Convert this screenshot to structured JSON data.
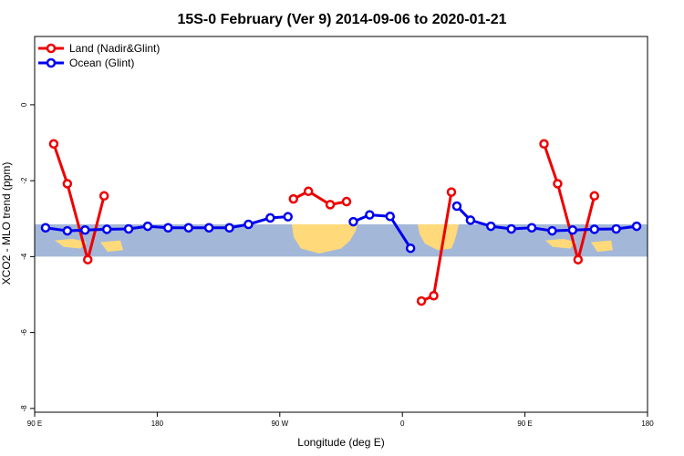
{
  "chart_data": {
    "type": "line",
    "title": "15S-0 February (Ver 9)   2014-09-06 to 2020-01-21",
    "xlabel": "Longitude (deg E)",
    "ylabel": "XCO2 - MLO trend (ppm)",
    "xlim": [
      90,
      540
    ],
    "ylim": [
      -8.1,
      1.8
    ],
    "xticks": [
      90,
      180,
      270,
      360,
      450,
      540
    ],
    "xtick_labels": [
      "90 E",
      "180",
      "90 W",
      "0",
      "90 E",
      "180"
    ],
    "yticks": [
      -8,
      -6,
      -4,
      -2,
      0
    ],
    "ytick_labels": [
      "-8",
      "-6",
      "-4",
      "-2",
      "0"
    ],
    "grid": false,
    "legend_position": "top-left",
    "background_band": {
      "y_from": -4.0,
      "y_to": -3.15,
      "description": "world map strip"
    },
    "series": [
      {
        "name": "Land (Nadir&Glint)",
        "color": "#ee0000",
        "segments": [
          [
            [
              104.0,
              -1.03
            ],
            [
              114.0,
              -2.08
            ],
            [
              129.0,
              -4.08
            ],
            [
              141.0,
              -2.4
            ]
          ],
          [
            [
              280.0,
              -2.48
            ],
            [
              291.0,
              -2.28
            ],
            [
              307.0,
              -2.63
            ],
            [
              319.0,
              -2.55
            ]
          ],
          [
            [
              374.0,
              -5.17
            ],
            [
              383.0,
              -5.03
            ],
            [
              396.0,
              -2.3
            ]
          ],
          [
            [
              464.0,
              -1.03
            ],
            [
              474.0,
              -2.08
            ],
            [
              489.0,
              -4.08
            ],
            [
              501.0,
              -2.4
            ]
          ]
        ]
      },
      {
        "name": "Ocean (Glint)",
        "color": "#0000ee",
        "segments": [
          [
            [
              98.0,
              -3.24
            ],
            [
              114.0,
              -3.32
            ],
            [
              127.0,
              -3.3
            ],
            [
              143.0,
              -3.28
            ],
            [
              159.0,
              -3.27
            ],
            [
              173.0,
              -3.2
            ],
            [
              188.0,
              -3.24
            ],
            [
              203.0,
              -3.24
            ],
            [
              218.0,
              -3.24
            ],
            [
              233.0,
              -3.24
            ],
            [
              247.0,
              -3.15
            ],
            [
              263.0,
              -2.98
            ],
            [
              276.0,
              -2.95
            ]
          ],
          [
            [
              324.0,
              -3.08
            ],
            [
              336.0,
              -2.9
            ],
            [
              351.0,
              -2.94
            ],
            [
              366.0,
              -3.78
            ]
          ],
          [
            [
              400.0,
              -2.67
            ],
            [
              410.0,
              -3.04
            ],
            [
              425.0,
              -3.2
            ],
            [
              440.0,
              -3.27
            ],
            [
              455.0,
              -3.24
            ],
            [
              470.0,
              -3.32
            ],
            [
              485.0,
              -3.3
            ],
            [
              501.0,
              -3.28
            ],
            [
              517.0,
              -3.27
            ],
            [
              532.0,
              -3.2
            ]
          ]
        ]
      }
    ]
  }
}
